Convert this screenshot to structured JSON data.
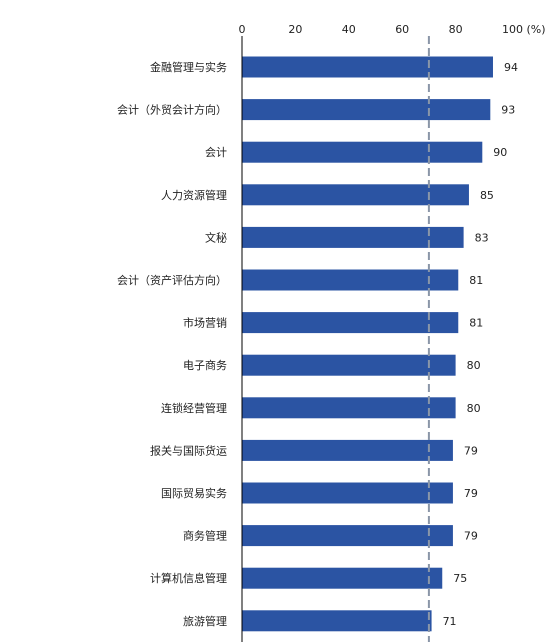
{
  "chart_data": {
    "type": "bar",
    "orientation": "horizontal",
    "categories": [
      "金融管理与实务",
      "会计（外贸会计方向）",
      "会计",
      "人力资源管理",
      "文秘",
      "会计（资产评估方向）",
      "市场营销",
      "电子商务",
      "连锁经营管理",
      "报关与国际货运",
      "国际贸易实务",
      "商务管理",
      "计算机信息管理",
      "旅游管理"
    ],
    "values": [
      94,
      93,
      90,
      85,
      83,
      81,
      81,
      80,
      80,
      79,
      79,
      79,
      75,
      71
    ],
    "x_ticks": [
      "0",
      "20",
      "40",
      "60",
      "80",
      "100 (%)"
    ],
    "xlim": [
      0,
      100
    ],
    "reference_line": 70,
    "title": "",
    "xlabel": "",
    "ylabel": "",
    "grid": false,
    "legend": "none",
    "colors": {
      "bar": "#2B54A3",
      "reference_line": "#8A96A8",
      "axis": "#000000"
    }
  }
}
